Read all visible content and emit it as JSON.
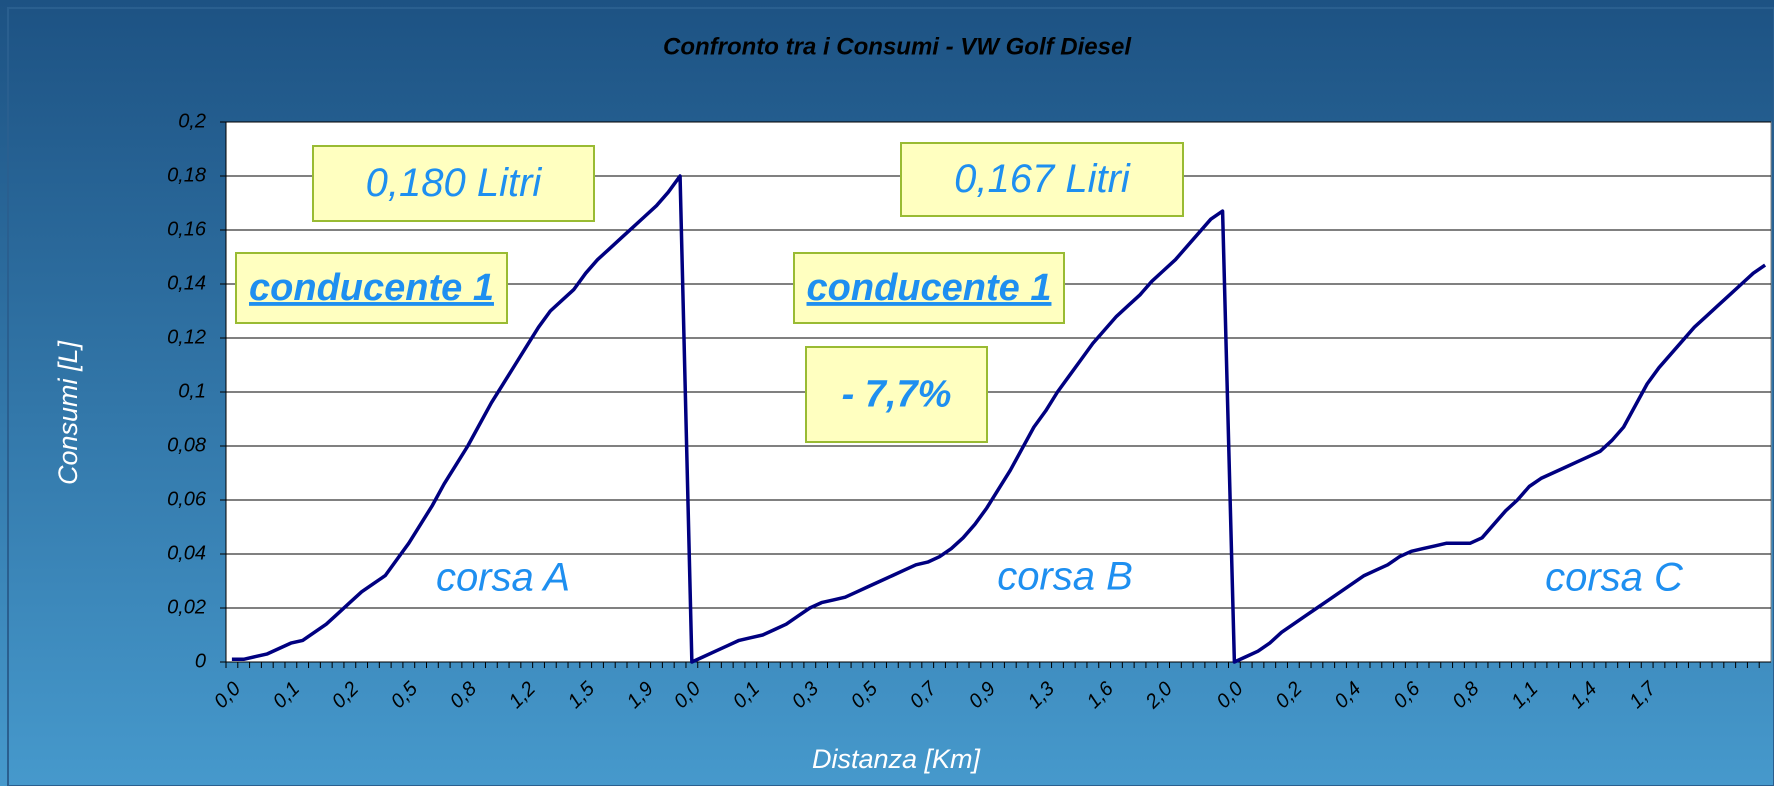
{
  "chart_data": {
    "type": "line",
    "title": "Confronto tra i Consumi - VW Golf Diesel",
    "x_label": "Distanza [Km]",
    "y_label": "Consumi [L]",
    "categories": [
      "0,0",
      null,
      null,
      null,
      null,
      "0,1",
      null,
      null,
      null,
      null,
      "0,2",
      null,
      null,
      null,
      null,
      "0,5",
      null,
      null,
      null,
      null,
      "0,8",
      null,
      null,
      null,
      null,
      "1,2",
      null,
      null,
      null,
      null,
      "1,5",
      null,
      null,
      null,
      null,
      "1,9",
      null,
      null,
      null,
      "0,0",
      null,
      null,
      null,
      null,
      "0,1",
      null,
      null,
      null,
      null,
      "0,3",
      null,
      null,
      null,
      null,
      "0,5",
      null,
      null,
      null,
      null,
      "0,7",
      null,
      null,
      null,
      null,
      "0,9",
      null,
      null,
      null,
      null,
      "1,3",
      null,
      null,
      null,
      null,
      "1,6",
      null,
      null,
      null,
      null,
      "2,0",
      null,
      null,
      null,
      null,
      null,
      "0,0",
      null,
      null,
      null,
      null,
      "0,2",
      null,
      null,
      null,
      null,
      "0,4",
      null,
      null,
      null,
      null,
      "0,6",
      null,
      null,
      null,
      null,
      "0,8",
      null,
      null,
      null,
      null,
      "1,1",
      null,
      null,
      null,
      null,
      "1,4",
      null,
      null,
      null,
      null,
      "1,7",
      null,
      null,
      null,
      null,
      null,
      null,
      null,
      null,
      null,
      null
    ],
    "values": [
      0.001,
      0.001,
      0.002,
      0.003,
      0.005,
      0.007,
      0.008,
      0.011,
      0.014,
      0.018,
      0.022,
      0.026,
      0.029,
      0.032,
      0.038,
      0.044,
      0.051,
      0.058,
      0.066,
      0.073,
      0.08,
      0.088,
      0.096,
      0.103,
      0.11,
      0.117,
      0.124,
      0.13,
      0.134,
      0.138,
      0.144,
      0.149,
      0.153,
      0.157,
      0.161,
      0.165,
      0.169,
      0.174,
      0.18,
      0,
      0.002,
      0.004,
      0.006,
      0.008,
      0.009,
      0.01,
      0.012,
      0.014,
      0.017,
      0.02,
      0.022,
      0.023,
      0.024,
      0.026,
      0.028,
      0.03,
      0.032,
      0.034,
      0.036,
      0.037,
      0.039,
      0.042,
      0.046,
      0.051,
      0.057,
      0.064,
      0.071,
      0.079,
      0.087,
      0.093,
      0.1,
      0.106,
      0.112,
      0.118,
      0.123,
      0.128,
      0.132,
      0.136,
      0.141,
      0.145,
      0.149,
      0.154,
      0.159,
      0.164,
      0.167,
      0,
      0.002,
      0.004,
      0.007,
      0.011,
      0.014,
      0.017,
      0.02,
      0.023,
      0.026,
      0.029,
      0.032,
      0.034,
      0.036,
      0.039,
      0.041,
      0.042,
      0.043,
      0.044,
      0.044,
      0.044,
      0.046,
      0.051,
      0.056,
      0.06,
      0.065,
      0.068,
      0.07,
      0.072,
      0.074,
      0.076,
      0.078,
      0.082,
      0.087,
      0.095,
      0.103,
      0.109,
      0.114,
      0.119,
      0.124,
      0.128,
      0.132,
      0.136,
      0.14,
      0.144,
      0.147
    ],
    "color": "#000080",
    "ylim": [
      0,
      0.2
    ],
    "yticks": [
      0,
      {
        "value": 0.02,
        "label": "0,02"
      },
      {
        "value": 0.04,
        "label": "0,04"
      },
      {
        "value": 0.06,
        "label": "0,06"
      },
      {
        "value": 0.08,
        "label": "0,08"
      },
      {
        "value": 0.1,
        "label": "0,1"
      },
      {
        "value": 0.12,
        "label": "0,12"
      },
      {
        "value": 0.14,
        "label": "0,14"
      },
      {
        "value": 0.16,
        "label": "0,16"
      },
      {
        "value": 0.18,
        "label": "0,18"
      },
      {
        "value": 0.2,
        "label": "0,2"
      }
    ],
    "grid": true,
    "annotations": [
      "0,180 Litri",
      "0,167 Litri",
      "conducente 1",
      "conducente 1",
      "- 7,7%",
      "corsa A",
      "corsa B",
      "corsa C"
    ]
  }
}
